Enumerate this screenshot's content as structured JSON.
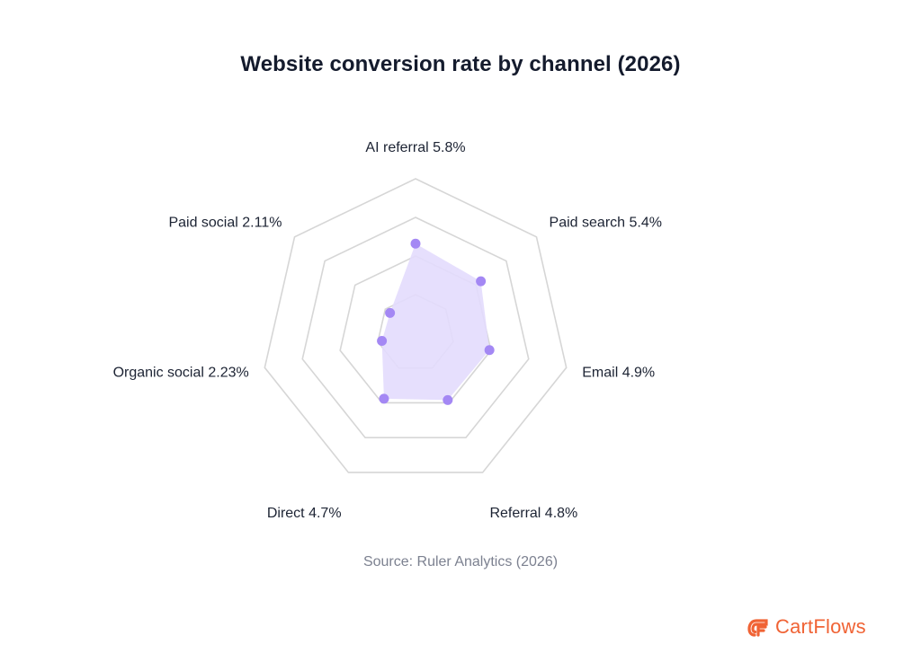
{
  "chart_data": {
    "type": "radar",
    "title": "Website conversion rate by channel (2026)",
    "categories": [
      "AI referral",
      "Paid search",
      "Email",
      "Referral",
      "Direct",
      "Organic social",
      "Paid social"
    ],
    "labels": [
      "AI referral 5.8%",
      "Paid search 5.4%",
      "Email 4.9%",
      "Referral 4.8%",
      "Direct 4.7%",
      "Organic social 2.23%",
      "Paid social 2.11%"
    ],
    "values": [
      5.8,
      5.4,
      4.9,
      4.8,
      4.7,
      2.23,
      2.11
    ],
    "unit": "%",
    "range": [
      0,
      10
    ],
    "grid_levels": [
      2.5,
      5,
      7.5,
      10
    ],
    "grid": true,
    "legend": "none",
    "fill_color": "#e3dbfd",
    "point_color": "#a488f4",
    "grid_color": "#d6d6d6"
  },
  "source": "Source: Ruler Analytics (2026)",
  "brand": {
    "name": "CartFlows",
    "color": "#f06335",
    "icon": "cartflows-logo-icon"
  }
}
